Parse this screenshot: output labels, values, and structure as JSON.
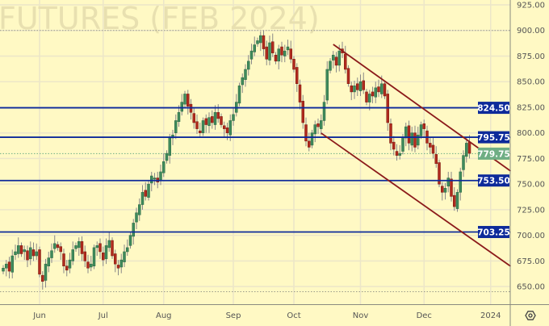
{
  "watermark": "FUTURES (FEB 2024)",
  "colors": {
    "background": "#fff9c4",
    "grid": "#ece6c8",
    "up_candle": "#3f8a5c",
    "down_candle": "#b02a1e",
    "wick": "#888888",
    "level_line": "#0d2a9a",
    "channel_line": "#8b1a1a",
    "last_price": "#6fae84"
  },
  "chart_data": {
    "type": "candlestick",
    "ylim": [
      640,
      930
    ],
    "y_ticks": [
      "925.00",
      "900.00",
      "875.00",
      "850.00",
      "825.00",
      "800.00",
      "775.00",
      "750.00",
      "725.00",
      "700.00",
      "675.00",
      "650.00"
    ],
    "x_ticks": [
      {
        "label": "Jun",
        "bar": 12
      },
      {
        "label": "Jul",
        "bar": 33
      },
      {
        "label": "Aug",
        "bar": 53
      },
      {
        "label": "Sep",
        "bar": 76
      },
      {
        "label": "Oct",
        "bar": 96
      },
      {
        "label": "Nov",
        "bar": 118
      },
      {
        "label": "Dec",
        "bar": 139
      },
      {
        "label": "2024",
        "bar": 161
      }
    ],
    "closes": [
      668,
      672,
      665,
      680,
      684,
      690,
      682,
      686,
      676,
      688,
      680,
      684,
      662,
      655,
      672,
      678,
      685,
      692,
      688,
      684,
      670,
      666,
      676,
      686,
      690,
      694,
      682,
      675,
      668,
      672,
      688,
      690,
      684,
      676,
      690,
      695,
      680,
      672,
      668,
      676,
      684,
      688,
      700,
      712,
      722,
      730,
      742,
      738,
      750,
      758,
      756,
      752,
      762,
      772,
      780,
      795,
      798,
      812,
      820,
      830,
      838,
      826,
      820,
      810,
      804,
      800,
      812,
      808,
      815,
      810,
      820,
      814,
      808,
      804,
      800,
      812,
      818,
      830,
      846,
      854,
      862,
      870,
      880,
      886,
      890,
      895,
      882,
      872,
      888,
      878,
      870,
      882,
      876,
      880,
      884,
      872,
      862,
      848,
      830,
      810,
      792,
      786,
      800,
      808,
      806,
      812,
      830,
      862,
      870,
      876,
      866,
      880,
      878,
      862,
      848,
      840,
      846,
      842,
      850,
      842,
      830,
      838,
      836,
      844,
      840,
      848,
      836,
      810,
      790,
      784,
      778,
      780,
      796,
      806,
      790,
      800,
      786,
      798,
      808,
      804,
      790,
      786,
      780,
      770,
      750,
      742,
      746,
      756,
      738,
      728,
      742,
      762,
      778,
      790,
      780
    ],
    "levels": [
      {
        "value": 824.5,
        "label": "824.50"
      },
      {
        "value": 795.75,
        "label": "795.75"
      },
      {
        "value": 753.5,
        "label": "753.50"
      },
      {
        "value": 703.25,
        "label": "703.25"
      }
    ],
    "last_price": {
      "value": 779.75,
      "label": "779.75"
    },
    "dotted_levels": [
      900,
      645
    ],
    "channel": [
      {
        "name": "upper",
        "from": [
          109,
          886.4
        ],
        "to": [
          167.6,
          762.7
        ]
      },
      {
        "name": "lower",
        "from": [
          105,
          799.8
        ],
        "to": [
          167.6,
          669.8
        ]
      }
    ]
  },
  "toolbar": {
    "settings_icon": "gear-icon"
  }
}
